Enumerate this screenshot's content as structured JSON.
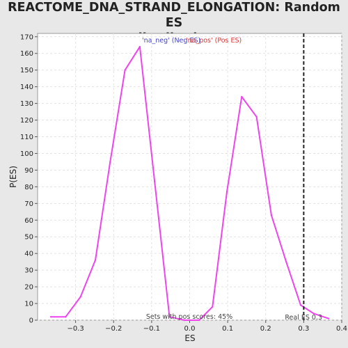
{
  "chart_data": {
    "type": "line",
    "title_line1": "REACTOME_DNA_STRAND_ELONGATION: Random ES",
    "title_line2": "distribution",
    "xlabel": "ES",
    "ylabel": "P(ES)",
    "xlim": [
      -0.4,
      0.4
    ],
    "ylim": [
      0,
      172
    ],
    "xticks": [
      -0.3,
      -0.2,
      -0.1,
      0.0,
      0.1,
      0.2,
      0.3,
      0.4
    ],
    "xtick_labels": [
      "−0.3",
      "−0.2",
      "−0.1",
      "0.0",
      "0.1",
      "0.2",
      "0.3",
      "0.4"
    ],
    "yticks": [
      0,
      10,
      20,
      30,
      40,
      50,
      60,
      70,
      80,
      90,
      100,
      110,
      120,
      130,
      140,
      150,
      160,
      170
    ],
    "grid": true,
    "legend": [
      {
        "label": "'na_neg' (Neg ES)",
        "color": "#4444cc"
      },
      {
        "label": "'na_pos' (Pos ES)",
        "color": "#dd3333"
      }
    ],
    "series": [
      {
        "color": "#ee44ee",
        "x": [
          -0.365,
          -0.326,
          -0.287,
          -0.248,
          -0.209,
          -0.17,
          -0.131,
          -0.092,
          -0.053,
          -0.014,
          0.025,
          0.06,
          0.098,
          0.137,
          0.176,
          0.215,
          0.254,
          0.292,
          0.326,
          0.365
        ],
        "y": [
          2,
          2,
          14,
          36,
          95,
          150,
          164,
          83,
          2,
          0,
          0,
          8,
          77,
          134,
          122,
          63,
          35,
          9,
          4,
          1
        ]
      }
    ],
    "annotations": {
      "real_es_label": "Real ES 0.3",
      "real_es_x": 0.3,
      "pos_scores_text": "Sets with pos scores: 45%"
    }
  }
}
